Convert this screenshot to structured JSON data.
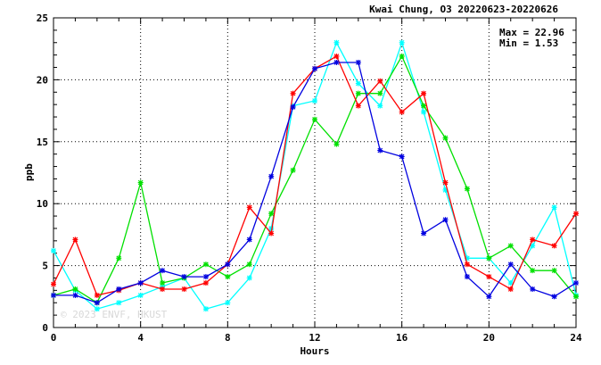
{
  "chart_data": {
    "type": "line",
    "title": "Kwai Chung, O3 20220623-20220626",
    "xlabel": "Hours",
    "ylabel": "ppb",
    "xlim": [
      0,
      24
    ],
    "ylim": [
      0,
      25
    ],
    "x_ticks": [
      0,
      4,
      8,
      12,
      16,
      20,
      24
    ],
    "y_ticks": [
      0,
      5,
      10,
      15,
      20,
      25
    ],
    "grid": true,
    "stats": {
      "max_label": "Max = 22.96",
      "min_label": "Min =  1.53"
    },
    "watermark": "© 2023 ENVF, HKUST",
    "x": [
      0,
      1,
      2,
      3,
      4,
      5,
      6,
      7,
      8,
      9,
      10,
      11,
      12,
      13,
      14,
      15,
      16,
      17,
      18,
      19,
      20,
      21,
      22,
      23,
      24
    ],
    "series": [
      {
        "color": "#00ffff",
        "values": [
          6.2,
          3.0,
          1.5,
          2.0,
          2.6,
          3.3,
          4.0,
          1.5,
          2.0,
          4.0,
          8.0,
          17.9,
          18.3,
          23.0,
          19.7,
          17.9,
          23.0,
          17.4,
          11.1,
          5.6,
          5.6,
          3.6,
          6.6,
          9.7,
          2.6
        ]
      },
      {
        "color": "#00e000",
        "values": [
          2.6,
          3.1,
          2.0,
          5.6,
          11.7,
          3.6,
          4.0,
          5.1,
          4.1,
          5.1,
          9.2,
          12.7,
          16.8,
          14.8,
          18.9,
          18.9,
          21.9,
          17.9,
          15.3,
          11.2,
          5.6,
          6.6,
          4.6,
          4.6,
          2.5
        ]
      },
      {
        "color": "#ff0000",
        "values": [
          3.5,
          7.1,
          2.6,
          3.0,
          3.6,
          3.1,
          3.1,
          3.6,
          5.1,
          9.7,
          7.6,
          18.9,
          20.9,
          21.9,
          17.9,
          19.9,
          17.4,
          18.9,
          11.7,
          5.1,
          4.1,
          3.1,
          7.1,
          6.6,
          9.2
        ]
      },
      {
        "color": "#0000e0",
        "values": [
          2.6,
          2.6,
          2.0,
          3.1,
          3.6,
          4.6,
          4.1,
          4.1,
          5.1,
          7.1,
          12.2,
          17.8,
          20.9,
          21.4,
          21.4,
          14.3,
          13.8,
          7.6,
          8.7,
          4.1,
          2.5,
          5.1,
          3.1,
          2.5,
          3.6
        ]
      }
    ]
  }
}
